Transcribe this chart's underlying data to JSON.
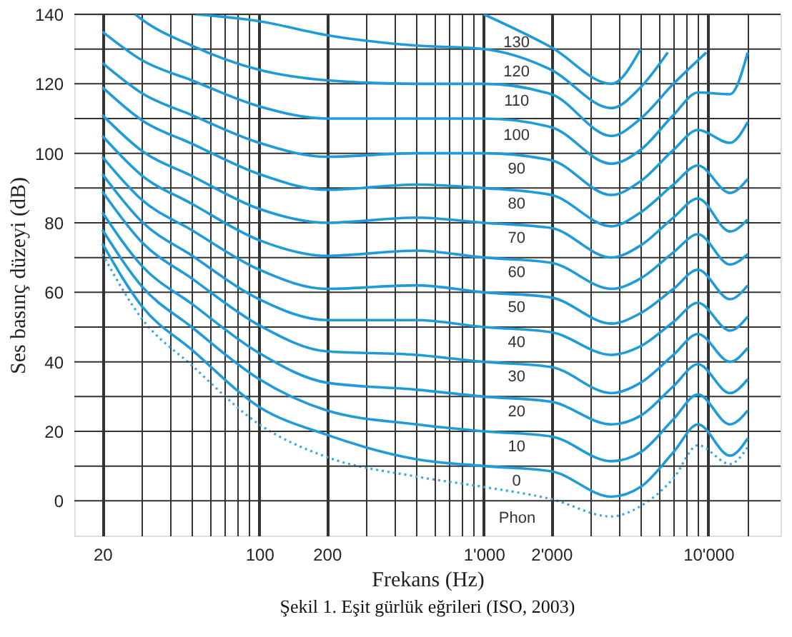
{
  "chart_data": {
    "type": "line",
    "xlabel": "Frekans (Hz)",
    "ylabel": "Ses basınç düzeyi (dB)",
    "log": "x",
    "grid": true,
    "line_style": "solid",
    "xlim": [
      15,
      21000
    ],
    "ylim": [
      -10,
      140
    ],
    "xticks": [
      20,
      {
        "value": 30,
        "label": null
      },
      {
        "value": 40,
        "label": null
      },
      {
        "value": 50,
        "label": null
      },
      {
        "value": 60,
        "label": null
      },
      {
        "value": 70,
        "label": null
      },
      {
        "value": 80,
        "label": null
      },
      {
        "value": 90,
        "label": null
      },
      100,
      200,
      {
        "value": 300,
        "label": null
      },
      {
        "value": 400,
        "label": null
      },
      {
        "value": 500,
        "label": null
      },
      {
        "value": 600,
        "label": null
      },
      {
        "value": 700,
        "label": null
      },
      {
        "value": 800,
        "label": null
      },
      {
        "value": 900,
        "label": null
      },
      {
        "value": 1000,
        "label": "1'000"
      },
      {
        "value": 2000,
        "label": "2'000"
      },
      {
        "value": 3000,
        "label": null
      },
      {
        "value": 4000,
        "label": null
      },
      {
        "value": 5000,
        "label": null
      },
      {
        "value": 6000,
        "label": null
      },
      {
        "value": 7000,
        "label": null
      },
      {
        "value": 8000,
        "label": null
      },
      {
        "value": 9000,
        "label": null
      },
      {
        "value": 10000,
        "label": "10'000"
      },
      {
        "value": 15000,
        "label": null
      }
    ],
    "yticks": [
      0,
      {
        "value": 10,
        "label": null
      },
      20,
      {
        "value": 30,
        "label": null
      },
      40,
      {
        "value": 50,
        "label": null
      },
      60,
      {
        "value": 70,
        "label": null
      },
      80,
      {
        "value": 90,
        "label": null
      },
      100,
      {
        "value": 110,
        "label": null
      },
      120,
      {
        "value": 130,
        "label": null
      },
      140
    ],
    "annotations": [
      "Phon",
      "Şekil 1. Eşit gürlük eğrileri (ISO, 2003)"
    ],
    "series": [
      {
        "color": "#3aa9e0",
        "line_style": "dotted",
        "x": [
          20,
          30,
          50,
          100,
          200,
          500,
          1000,
          2000,
          3700,
          5000,
          7000,
          9000,
          12500,
          15000
        ],
        "values": [
          71,
          52.4,
          39,
          22,
          12.6,
          7,
          4,
          0.5,
          -4.5,
          -1.5,
          6.5,
          16,
          10.6,
          15.5
        ]
      },
      {
        "name": "0",
        "color": "#1f9bd7",
        "x": [
          20,
          30,
          50,
          100,
          200,
          500,
          1000,
          2000,
          3700,
          5000,
          7000,
          9000,
          12500,
          15000
        ],
        "values": [
          74,
          56,
          43.5,
          27,
          19,
          12,
          10,
          8.5,
          1.2,
          4,
          14,
          22,
          13,
          18
        ]
      },
      {
        "name": "10",
        "color": "#1f9bd7",
        "x": [
          20,
          30,
          50,
          100,
          200,
          500,
          1000,
          2000,
          3700,
          5000,
          7000,
          9000,
          12500,
          15000
        ],
        "values": [
          78,
          61.7,
          50,
          35,
          26,
          22,
          20,
          18.5,
          11.4,
          14,
          23.5,
          30.6,
          22,
          26
        ]
      },
      {
        "name": "20",
        "color": "#1f9bd7",
        "x": [
          20,
          30,
          50,
          100,
          200,
          500,
          1000,
          2000,
          3700,
          5000,
          7000,
          9000,
          12500,
          15000
        ],
        "values": [
          83,
          67.6,
          56.7,
          42.5,
          34,
          32,
          30,
          28.5,
          22,
          24.5,
          33,
          39.3,
          31,
          35
        ]
      },
      {
        "name": "30",
        "color": "#1f9bd7",
        "x": [
          20,
          30,
          50,
          100,
          200,
          500,
          1000,
          2000,
          3700,
          5000,
          7000,
          9000,
          12500,
          15000
        ],
        "values": [
          89,
          74.4,
          64,
          50.5,
          43,
          42,
          40,
          38.5,
          31,
          34,
          42,
          48,
          40,
          44
        ]
      },
      {
        "name": "40",
        "color": "#1f9bd7",
        "x": [
          20,
          30,
          50,
          100,
          200,
          500,
          1000,
          2000,
          3700,
          5000,
          7000,
          9000,
          12500,
          15000
        ],
        "values": [
          94,
          80.3,
          70.6,
          58,
          52,
          52,
          50,
          48.5,
          42,
          44.5,
          51.5,
          57,
          49,
          53
        ]
      },
      {
        "name": "50",
        "color": "#1f9bd7",
        "x": [
          20,
          30,
          50,
          100,
          200,
          500,
          1000,
          2000,
          3700,
          5000,
          7000,
          9000,
          12500,
          15000
        ],
        "values": [
          99,
          86.6,
          77.9,
          66.5,
          61,
          62,
          60,
          58.5,
          51,
          54,
          61,
          66.5,
          58,
          62
        ]
      },
      {
        "name": "60",
        "color": "#1f9bd7",
        "x": [
          20,
          30,
          50,
          100,
          200,
          500,
          1000,
          2000,
          3700,
          5000,
          7000,
          9000,
          12500,
          15000
        ],
        "values": [
          105,
          93.6,
          85.5,
          75,
          70.5,
          72,
          70,
          68.5,
          61,
          64,
          71.5,
          76.7,
          68,
          71
        ]
      },
      {
        "name": "70",
        "color": "#1f9bd7",
        "x": [
          20,
          30,
          50,
          100,
          200,
          500,
          1000,
          2000,
          3700,
          5000,
          7000,
          9000,
          12500,
          15000
        ],
        "values": [
          111,
          100.7,
          93.5,
          84,
          80,
          81.5,
          80,
          78.5,
          70,
          73.5,
          81.5,
          87,
          77.5,
          81
        ]
      },
      {
        "name": "80",
        "color": "#1f9bd7",
        "x": [
          20,
          30,
          50,
          100,
          200,
          500,
          1000,
          2000,
          3700,
          5000,
          7000,
          9000,
          12500,
          15000
        ],
        "values": [
          119,
          109.5,
          102.8,
          94,
          89.5,
          91,
          90,
          88,
          79,
          83,
          91,
          96.5,
          88.6,
          92.6
        ]
      },
      {
        "name": "90",
        "color": "#1f9bd7",
        "x": [
          20,
          30,
          50,
          100,
          200,
          500,
          1000,
          2000,
          3700,
          5000,
          7000,
          9000,
          12500,
          15000
        ],
        "values": [
          126,
          117.3,
          111,
          103,
          99,
          100,
          100,
          98,
          88,
          92,
          101,
          106.7,
          103,
          109
        ]
      },
      {
        "name": "100",
        "color": "#1f9bd7",
        "x": [
          20,
          30,
          50,
          100,
          200,
          500,
          1000,
          2000,
          3700,
          5000,
          7000,
          9000,
          12500,
          15000
        ],
        "values": [
          135,
          126.8,
          121,
          113.5,
          110,
          110,
          110,
          107.5,
          97,
          101,
          111,
          117.5,
          117,
          129
        ]
      },
      {
        "name": "110",
        "color": "#1f9bd7",
        "x": [
          28,
          30,
          50,
          100,
          200,
          500,
          1000,
          2000,
          3700,
          5000,
          7000,
          9800
        ],
        "values": [
          140,
          138.5,
          131,
          124,
          121,
          120,
          120,
          117,
          105,
          110,
          120,
          129
        ]
      },
      {
        "name": "120",
        "color": "#1f9bd7",
        "x": [
          52,
          100,
          200,
          500,
          1000,
          2000,
          3700,
          5000,
          6600
        ],
        "values": [
          140,
          138,
          134,
          131,
          130,
          124,
          113,
          119,
          129
        ]
      },
      {
        "name": "130",
        "color": "#1f9bd7",
        "x": [
          1000,
          2000,
          3700,
          5000
        ],
        "values": [
          140,
          130.5,
          120,
          130
        ]
      }
    ]
  }
}
